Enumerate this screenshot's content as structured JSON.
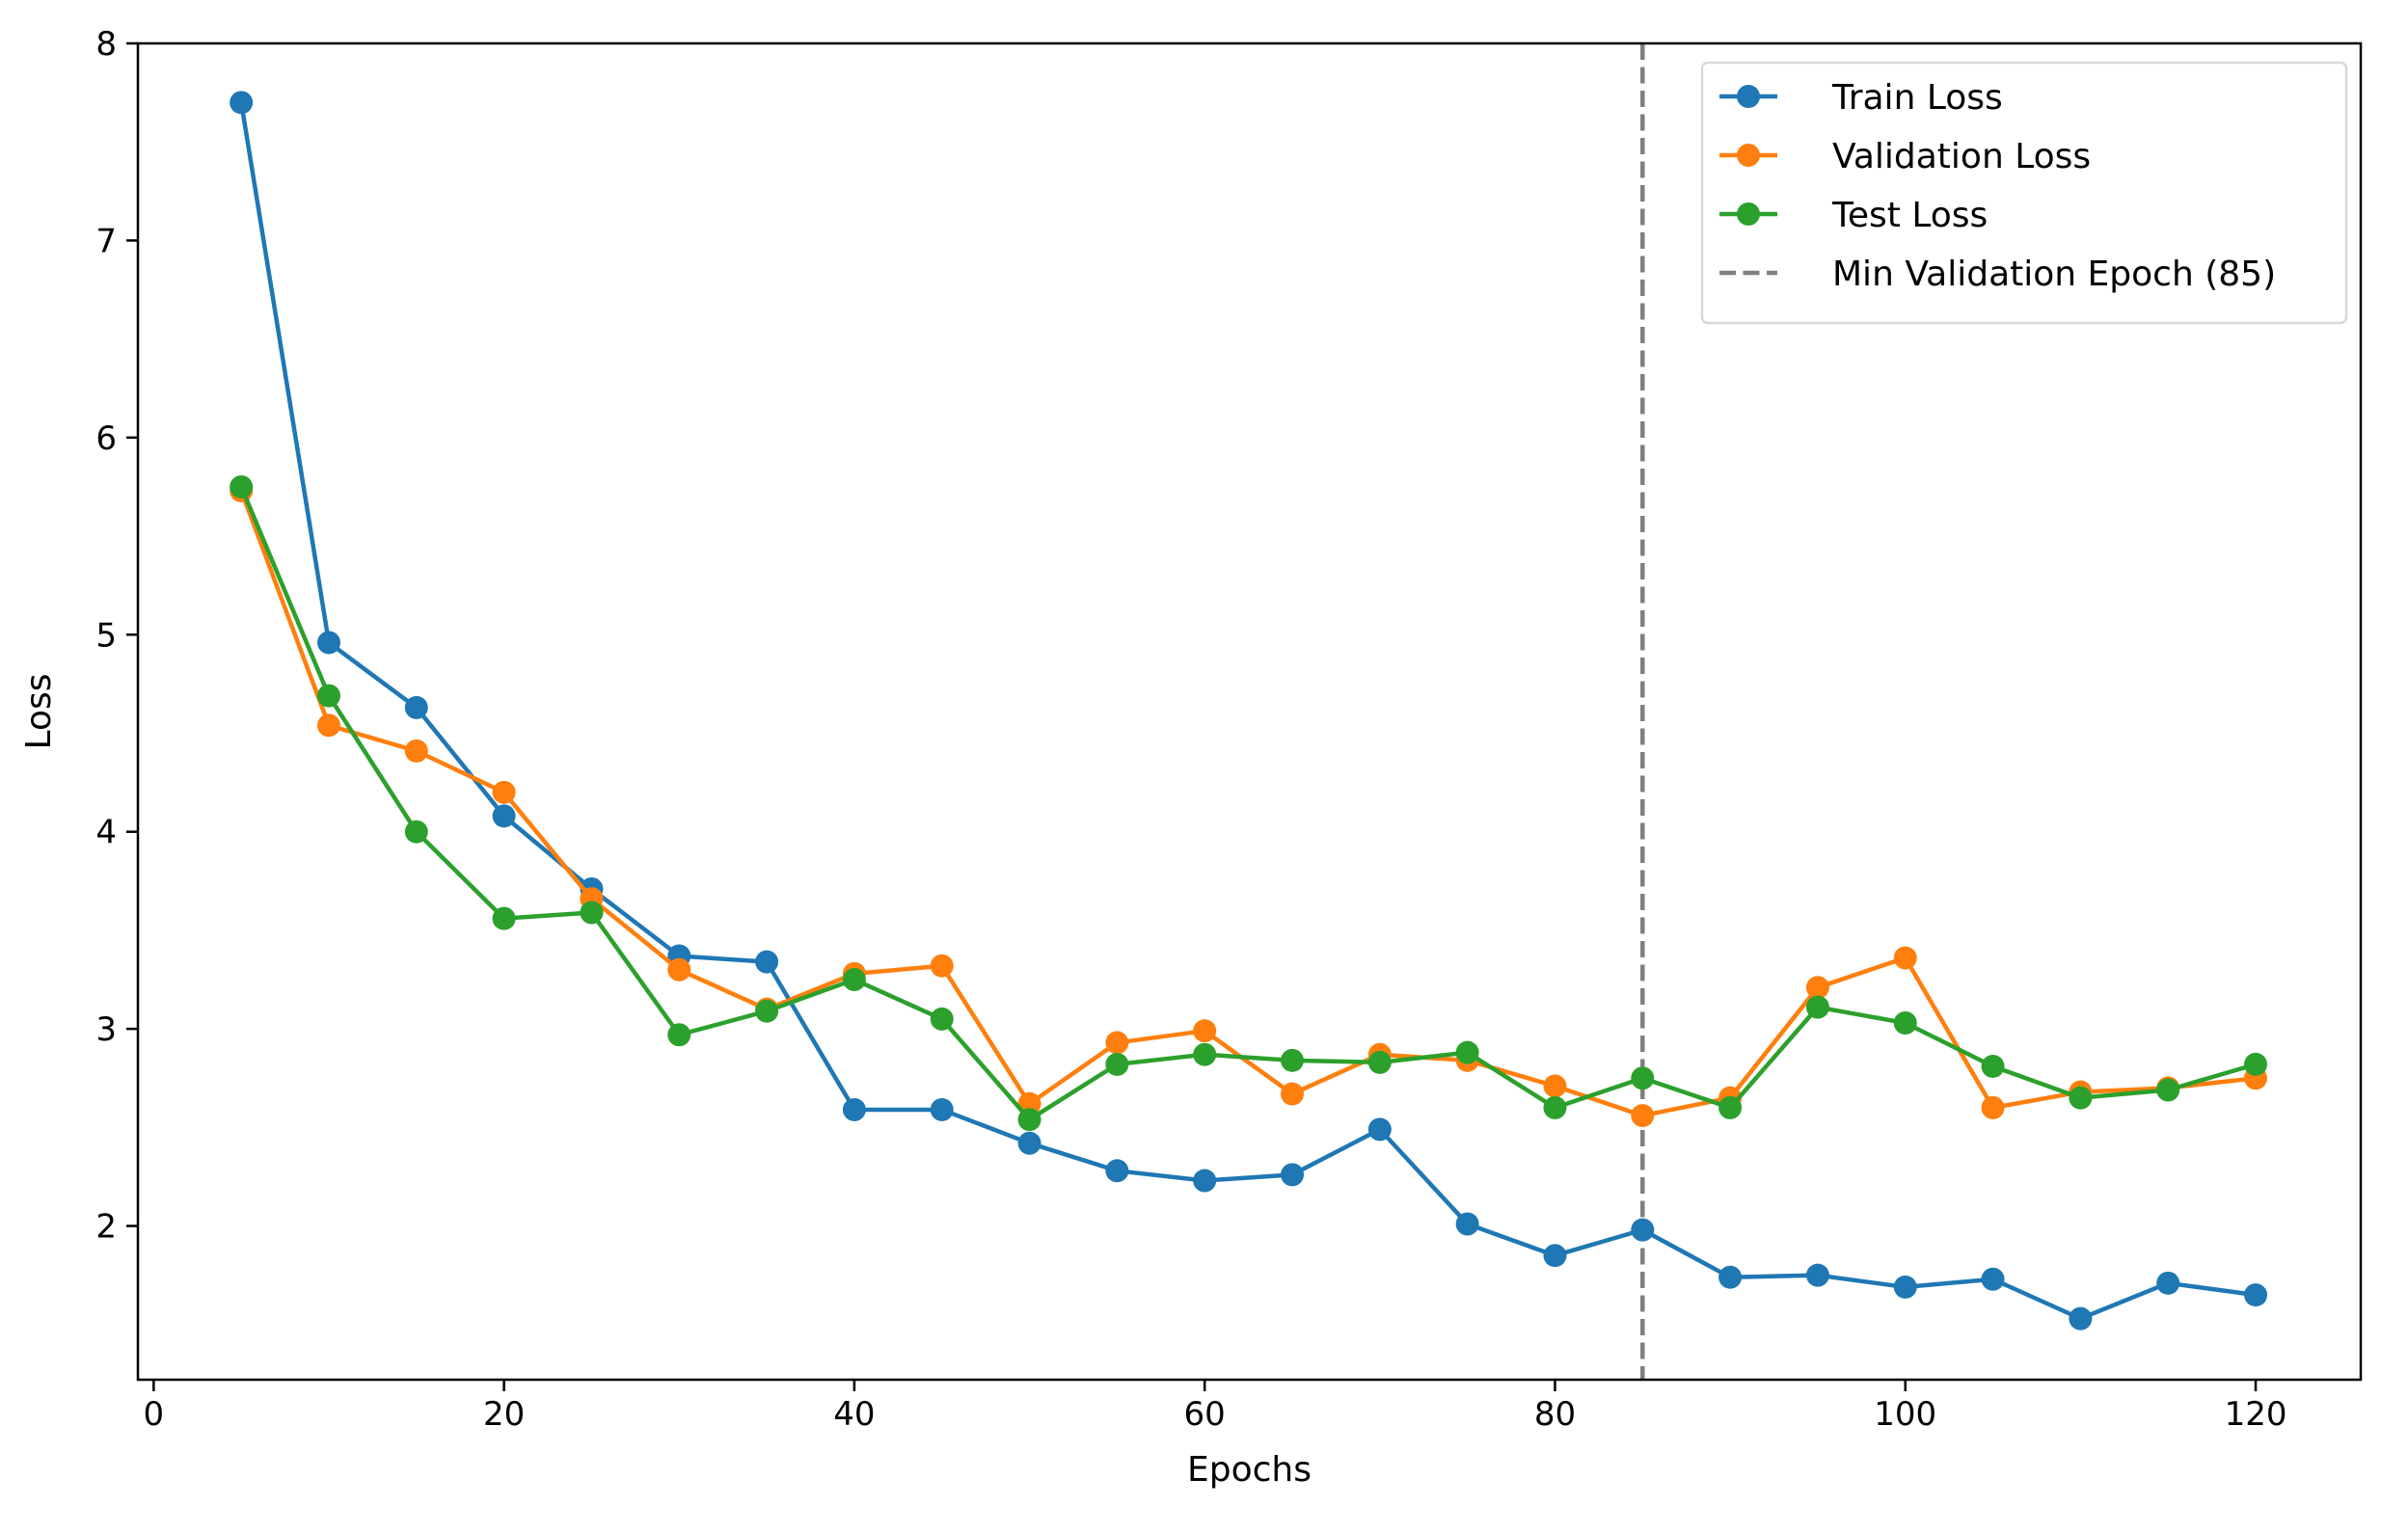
{
  "chart_data": {
    "type": "line",
    "title": "",
    "xlabel": "Epochs",
    "ylabel": "Loss",
    "xlim": [
      -0.9,
      126
    ],
    "ylim": [
      1.22,
      8.0
    ],
    "xticks": [
      0,
      20,
      40,
      60,
      80,
      100,
      120
    ],
    "yticks": [
      2,
      3,
      4,
      5,
      6,
      7,
      8
    ],
    "xtick_labels": [
      "0",
      "20",
      "40",
      "60",
      "80",
      "100",
      "120"
    ],
    "ytick_labels": [
      "2",
      "3",
      "4",
      "5",
      "6",
      "7",
      "8"
    ],
    "grid": false,
    "legend_position": "upper right",
    "x": [
      5,
      10,
      15,
      20,
      25,
      30,
      35,
      40,
      45,
      50,
      55,
      60,
      65,
      70,
      75,
      80,
      85,
      90,
      95,
      100,
      105,
      110,
      115,
      120
    ],
    "series": [
      {
        "name": "Train Loss",
        "color": "#1f77b4",
        "marker": "circle",
        "values": [
          7.7,
          4.96,
          4.63,
          4.08,
          3.71,
          3.37,
          3.34,
          2.59,
          2.59,
          2.42,
          2.28,
          2.23,
          2.26,
          2.49,
          2.01,
          1.85,
          1.98,
          1.74,
          1.75,
          1.69,
          1.73,
          1.53,
          1.71,
          1.65
        ]
      },
      {
        "name": "Validation Loss",
        "color": "#ff7f0e",
        "marker": "circle",
        "values": [
          5.73,
          4.54,
          4.41,
          4.2,
          3.66,
          3.3,
          3.1,
          3.28,
          3.32,
          2.62,
          2.93,
          2.99,
          2.67,
          2.87,
          2.84,
          2.71,
          2.56,
          2.65,
          3.21,
          3.36,
          2.6,
          2.68,
          2.7,
          2.75
        ]
      },
      {
        "name": "Test Loss",
        "color": "#2ca02c",
        "marker": "circle",
        "values": [
          5.75,
          4.69,
          4.0,
          3.56,
          3.59,
          2.97,
          3.09,
          3.25,
          3.05,
          2.54,
          2.82,
          2.87,
          2.84,
          2.83,
          2.88,
          2.6,
          2.75,
          2.6,
          3.11,
          3.03,
          2.81,
          2.65,
          2.69,
          2.82
        ]
      }
    ],
    "reference_lines": [
      {
        "orientation": "vertical",
        "x": 85,
        "name": "Min Validation Epoch (85)",
        "color": "#7f7f7f",
        "style": "dashed"
      }
    ]
  }
}
